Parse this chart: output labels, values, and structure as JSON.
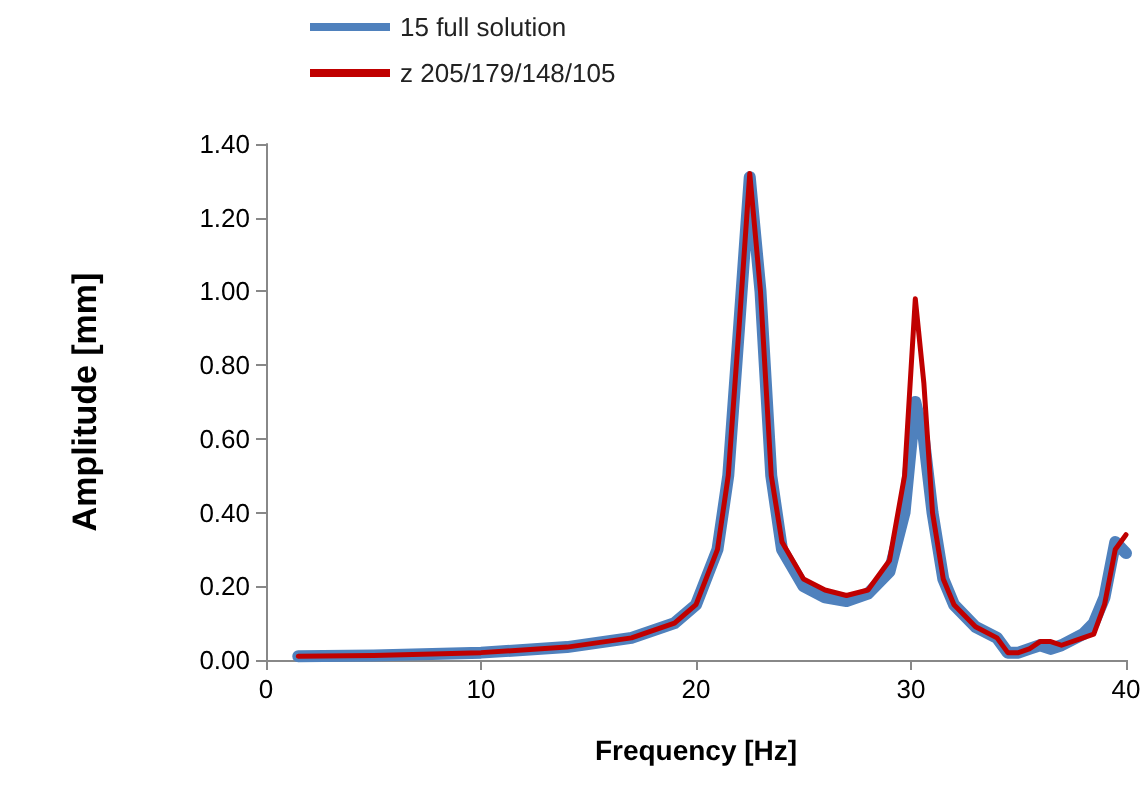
{
  "chart_data": {
    "type": "line",
    "xlabel": "Frequency [Hz]",
    "ylabel": "Amplitude [mm]",
    "xlim": [
      0,
      40
    ],
    "xticks": [
      0,
      10,
      20,
      30,
      40
    ],
    "ylim": [
      0,
      1.4
    ],
    "yticks": [
      {
        "value": 0,
        "label": "0.00"
      },
      {
        "value": 0.2,
        "label": "0.20"
      },
      {
        "value": 0.4,
        "label": "0.40"
      },
      {
        "value": 0.6,
        "label": "0.60"
      },
      {
        "value": 0.8,
        "label": "0.80"
      },
      {
        "value": 1.0,
        "label": "1.00"
      },
      {
        "value": 1.2,
        "label": "1.20"
      },
      {
        "value": 1.4,
        "label": "1.40"
      }
    ],
    "grid": false,
    "legend": "top",
    "marker": "none",
    "line_style": "solid",
    "series": [
      {
        "name": "15 full solution",
        "color": "#4f81bd",
        "x": [
          1.5,
          5,
          10,
          14,
          17,
          19,
          20,
          21,
          21.5,
          22,
          22.5,
          23,
          23.5,
          24,
          25,
          26,
          27,
          28,
          29,
          29.7,
          30.2,
          30.6,
          31,
          31.5,
          32,
          33,
          34,
          34.5,
          35,
          35.5,
          36,
          36.5,
          37,
          38,
          38.5,
          39,
          39.5,
          40
        ],
        "values": [
          0.01,
          0.012,
          0.02,
          0.035,
          0.06,
          0.1,
          0.15,
          0.3,
          0.5,
          0.9,
          1.31,
          1.0,
          0.5,
          0.3,
          0.2,
          0.17,
          0.16,
          0.18,
          0.24,
          0.4,
          0.7,
          0.6,
          0.4,
          0.22,
          0.15,
          0.09,
          0.06,
          0.02,
          0.02,
          0.03,
          0.04,
          0.03,
          0.04,
          0.07,
          0.1,
          0.17,
          0.32,
          0.29
        ]
      },
      {
        "name": "z 205/179/148/105",
        "color": "#c00000",
        "x": [
          1.5,
          5,
          10,
          14,
          17,
          19,
          20,
          21,
          21.5,
          22,
          22.5,
          23,
          23.5,
          24,
          25,
          26,
          27,
          28,
          29,
          29.7,
          30.2,
          30.6,
          31,
          31.5,
          32,
          33,
          34,
          34.5,
          35,
          35.5,
          36,
          36.5,
          37,
          38,
          38.5,
          39,
          39.5,
          40
        ],
        "values": [
          0.01,
          0.012,
          0.02,
          0.035,
          0.06,
          0.1,
          0.15,
          0.3,
          0.5,
          0.9,
          1.32,
          1.0,
          0.5,
          0.32,
          0.22,
          0.19,
          0.175,
          0.19,
          0.27,
          0.5,
          0.98,
          0.75,
          0.4,
          0.22,
          0.15,
          0.09,
          0.06,
          0.02,
          0.02,
          0.03,
          0.05,
          0.05,
          0.04,
          0.06,
          0.07,
          0.15,
          0.3,
          0.34
        ]
      }
    ]
  }
}
